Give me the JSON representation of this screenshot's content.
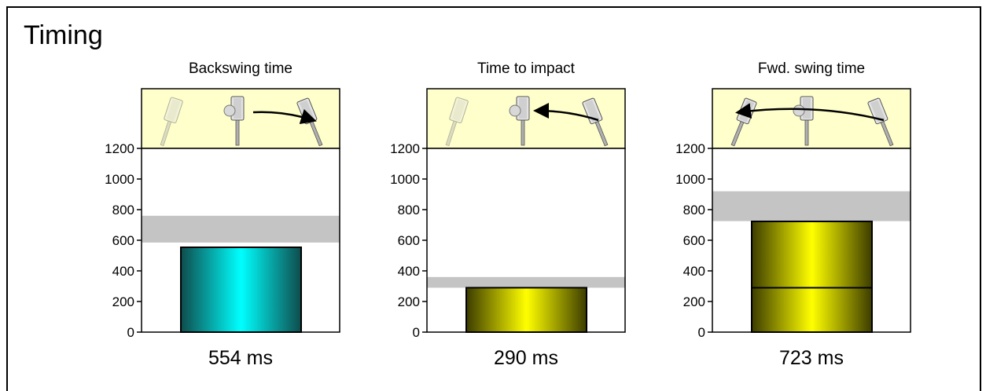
{
  "page": {
    "title": "Timing"
  },
  "colors": {
    "band": "#c4c4c4",
    "header_bg": "#ffffcc",
    "teal_dark": "#0f4c4c",
    "teal_light": "#00ffff",
    "yellow_dark": "#3c3c00",
    "yellow_light": "#ffff00"
  },
  "chart_data": [
    {
      "type": "bar",
      "title": "Backswing time",
      "ylim": [
        0,
        1200
      ],
      "yticks": [
        0,
        200,
        400,
        600,
        800,
        1000,
        1200
      ],
      "value": 554,
      "value_label": "554 ms",
      "band": [
        585,
        760
      ],
      "color": "teal",
      "split": null,
      "icon": "backswing-diagram-icon"
    },
    {
      "type": "bar",
      "title": "Time to impact",
      "ylim": [
        0,
        1200
      ],
      "yticks": [
        0,
        200,
        400,
        600,
        800,
        1000,
        1200
      ],
      "value": 290,
      "value_label": "290 ms",
      "band": [
        290,
        360
      ],
      "color": "yellow",
      "split": null,
      "icon": "time-to-impact-diagram-icon"
    },
    {
      "type": "bar",
      "title": "Fwd. swing time",
      "ylim": [
        0,
        1200
      ],
      "yticks": [
        0,
        200,
        400,
        600,
        800,
        1000,
        1200
      ],
      "value": 723,
      "value_label": "723 ms",
      "band": [
        725,
        920
      ],
      "color": "yellow",
      "split": 290,
      "icon": "forward-swing-diagram-icon"
    }
  ]
}
